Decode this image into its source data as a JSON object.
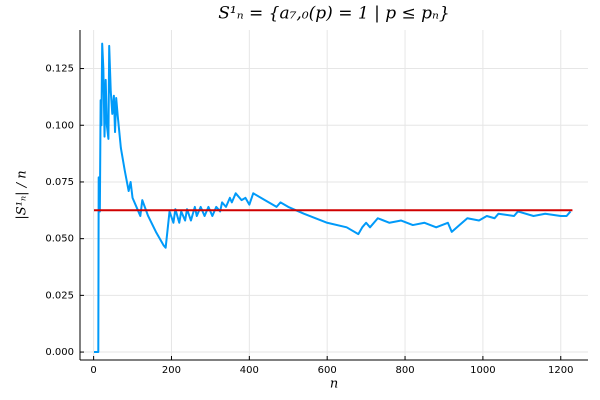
{
  "chart_data": {
    "type": "line",
    "title": "S¹ₙ = {a₇,₀(p) = 1 | p ≤ pₙ}",
    "xlabel": "n",
    "ylabel": "|S¹ₙ| / n",
    "grid": true,
    "xlim": [
      -35,
      1270
    ],
    "ylim": [
      -0.0035,
      0.142
    ],
    "xticks": [
      0,
      200,
      400,
      600,
      800,
      1000,
      1200
    ],
    "yticks": [
      {
        "value": 0,
        "label": "0.000"
      },
      {
        "value": 0.025,
        "label": "0.025"
      },
      {
        "value": 0.05,
        "label": "0.050"
      },
      {
        "value": 0.075,
        "label": "0.075"
      },
      {
        "value": 0.1,
        "label": "0.100"
      },
      {
        "value": 0.125,
        "label": "0.125"
      }
    ],
    "series": [
      {
        "color": "#009af9",
        "x": [
          1,
          12,
          13,
          16,
          18,
          20,
          22,
          25,
          28,
          31,
          34,
          38,
          40,
          44,
          48,
          52,
          55,
          58,
          62,
          70,
          80,
          90,
          95,
          100,
          115,
          120,
          125,
          140,
          160,
          180,
          185,
          190,
          195,
          205,
          210,
          220,
          225,
          235,
          240,
          250,
          260,
          265,
          275,
          285,
          295,
          305,
          315,
          325,
          330,
          340,
          350,
          355,
          365,
          380,
          390,
          400,
          410,
          440,
          470,
          480,
          500,
          540,
          600,
          650,
          680,
          690,
          700,
          710,
          730,
          760,
          790,
          820,
          850,
          880,
          910,
          920,
          940,
          960,
          990,
          1010,
          1030,
          1040,
          1080,
          1090,
          1130,
          1160,
          1200,
          1215,
          1225
        ],
        "values": [
          0,
          0,
          0.077,
          0.062,
          0.111,
          0.1,
          0.136,
          0.125,
          0.095,
          0.12,
          0.1,
          0.094,
          0.135,
          0.115,
          0.105,
          0.113,
          0.097,
          0.112,
          0.104,
          0.09,
          0.08,
          0.071,
          0.075,
          0.068,
          0.062,
          0.06,
          0.067,
          0.06,
          0.053,
          0.047,
          0.046,
          0.054,
          0.062,
          0.057,
          0.063,
          0.057,
          0.062,
          0.058,
          0.063,
          0.058,
          0.064,
          0.06,
          0.064,
          0.06,
          0.064,
          0.06,
          0.064,
          0.062,
          0.066,
          0.064,
          0.068,
          0.066,
          0.07,
          0.067,
          0.068,
          0.065,
          0.07,
          0.067,
          0.064,
          0.066,
          0.064,
          0.061,
          0.057,
          0.055,
          0.052,
          0.055,
          0.057,
          0.055,
          0.059,
          0.057,
          0.058,
          0.056,
          0.057,
          0.055,
          0.057,
          0.053,
          0.056,
          0.059,
          0.058,
          0.06,
          0.059,
          0.061,
          0.06,
          0.062,
          0.06,
          0.061,
          0.06,
          0.06,
          0.062
        ]
      },
      {
        "color": "#d00000",
        "x": [
          1,
          1230
        ],
        "values": [
          0.0625,
          0.0625
        ]
      }
    ]
  }
}
